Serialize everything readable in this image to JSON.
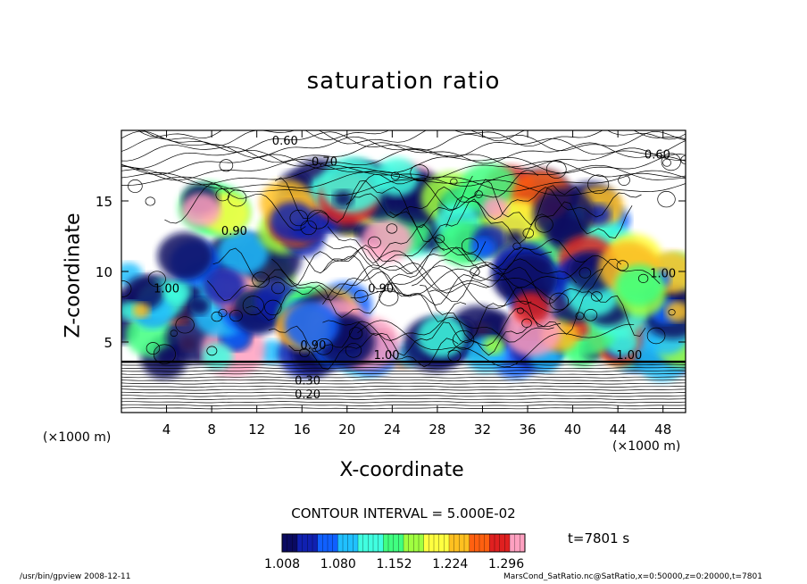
{
  "chart_data": {
    "type": "heatmap",
    "title": "saturation ratio",
    "xlabel": "X-coordinate",
    "ylabel": "Z-coordinate",
    "x_unit_left": "(×1000 m)",
    "x_unit_right": "(×1000 m)",
    "xlim": [
      0,
      50
    ],
    "ylim": [
      0,
      20
    ],
    "x_ticks": [
      4,
      8,
      12,
      16,
      20,
      24,
      28,
      32,
      36,
      40,
      44,
      48
    ],
    "y_ticks": [
      5,
      10,
      15
    ],
    "contour_labels": [
      "0.60",
      "0.70",
      "0.60",
      "0.90",
      "1.00",
      "0.90",
      "1.00",
      "1.00",
      "1.00",
      "0.90",
      "0.20",
      "0.30"
    ],
    "contour_interval": "CONTOUR INTERVAL = 5.000E-02",
    "time": "t=7801 s",
    "colorbar": {
      "ticks": [
        "1.008",
        "1.080",
        "1.152",
        "1.224",
        "1.296"
      ],
      "min": 1.008,
      "max": 1.32,
      "colors": [
        "#0a0a60",
        "#1020b0",
        "#1060ff",
        "#20c0ff",
        "#40ffe0",
        "#40ff80",
        "#a0ff40",
        "#ffff40",
        "#ffc020",
        "#ff6010",
        "#e02020",
        "#ffa0c0"
      ]
    }
  },
  "footer": {
    "left": "/usr/bin/gpview   2008-12-11",
    "right": "MarsCond_SatRatio.nc@SatRatio,x=0:50000,z=0:20000,t=7801"
  }
}
